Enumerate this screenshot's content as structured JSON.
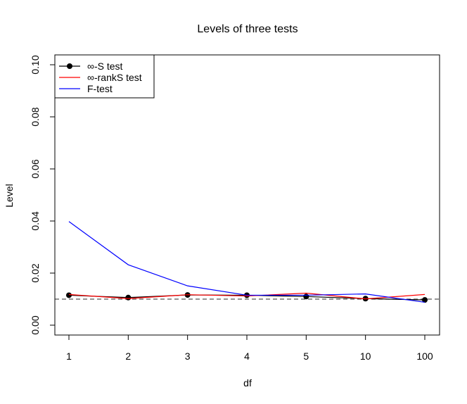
{
  "chart_data": {
    "type": "line",
    "title": "Levels of three tests",
    "xlabel": "df",
    "ylabel": "Level",
    "categories": [
      "1",
      "2",
      "3",
      "4",
      "5",
      "10",
      "100"
    ],
    "ylim": [
      0.0,
      0.1
    ],
    "yticks": [
      "0.00",
      "0.02",
      "0.04",
      "0.06",
      "0.08",
      "0.10"
    ],
    "reference_line": {
      "value": 0.01,
      "style": "dashed",
      "color": "#555555"
    },
    "grid": false,
    "legend_position": "top-left",
    "series": [
      {
        "name": "∞-S test",
        "color": "#000000",
        "marker": "circle",
        "values": [
          0.0115,
          0.0106,
          0.0116,
          0.0115,
          0.011,
          0.0102,
          0.0097
        ]
      },
      {
        "name": "∞-rankS test",
        "color": "#ff0000",
        "marker": "none",
        "values": [
          0.0118,
          0.0102,
          0.0117,
          0.0112,
          0.0123,
          0.0101,
          0.0118
        ]
      },
      {
        "name": "F-test",
        "color": "#0000ff",
        "marker": "none",
        "values": [
          0.0398,
          0.0232,
          0.0151,
          0.0115,
          0.0115,
          0.012,
          0.0088
        ]
      }
    ]
  }
}
